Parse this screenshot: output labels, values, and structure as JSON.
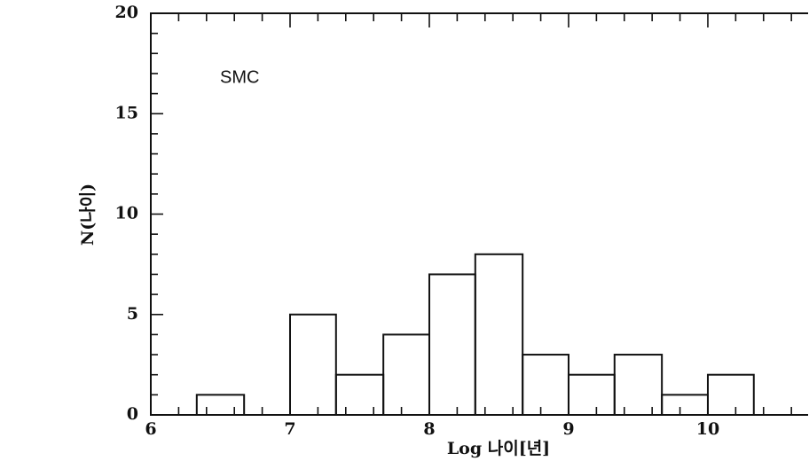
{
  "chart_data": {
    "type": "histogram",
    "ylabel": "N(나이)",
    "xlabel": "Log 나이[년]",
    "annotation": "SMC",
    "bins": [
      6.33,
      6.67,
      7,
      7.33,
      7.67,
      8,
      8.33,
      8.67,
      9,
      9.33,
      9.67,
      10,
      10.33
    ],
    "values": [
      1,
      0,
      5,
      2,
      4,
      7,
      8,
      3,
      2,
      3,
      1,
      2
    ],
    "color": "#111111",
    "xlim": [
      6,
      10.72
    ],
    "ylim": [
      0,
      20
    ],
    "xticks": [
      6,
      7,
      8,
      9,
      10
    ],
    "yticks": [
      0,
      5,
      10,
      15,
      20
    ],
    "xminorticks": [
      6.2,
      6.4,
      6.6,
      6.8,
      7.2,
      7.4,
      7.6,
      7.8,
      8.2,
      8.4,
      8.6,
      8.8,
      9.2,
      9.4,
      9.6,
      9.8,
      10.2,
      10.4,
      10.6
    ],
    "yminorticks": [
      1,
      2,
      3,
      4,
      6,
      7,
      8,
      9,
      11,
      12,
      13,
      14,
      16,
      17,
      18,
      19
    ]
  }
}
